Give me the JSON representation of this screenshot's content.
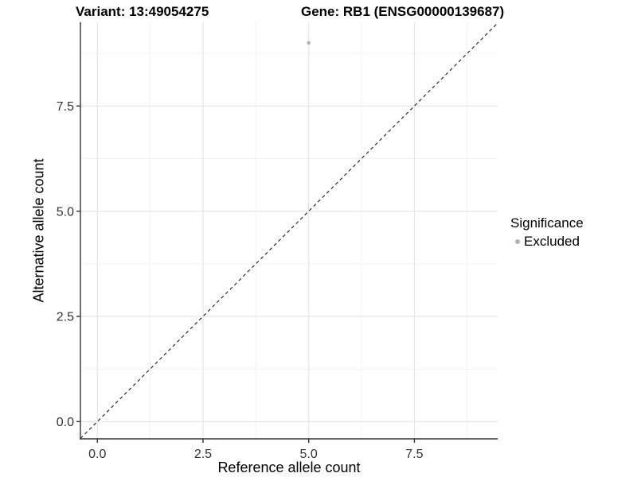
{
  "header": {
    "title_left": "Variant: 13:49054275",
    "title_right": "Gene: RB1 (ENSG00000139687)"
  },
  "chart_data": {
    "type": "scatter",
    "xlabel": "Reference allele count",
    "ylabel": "Alternative allele count",
    "xlim": [
      -0.4,
      9.47
    ],
    "ylim": [
      -0.41,
      9.49
    ],
    "x_ticks": {
      "values": [
        0.0,
        2.5,
        5.0,
        7.5
      ],
      "labels": [
        "0.0",
        "2.5",
        "5.0",
        "7.5"
      ]
    },
    "y_ticks": {
      "values": [
        0.0,
        2.5,
        5.0,
        7.5
      ],
      "labels": [
        "0.0",
        "2.5",
        "5.0",
        "7.5"
      ]
    },
    "x_minor_ticks": [
      1.25,
      3.75,
      6.25,
      8.75
    ],
    "y_minor_ticks": [
      1.25,
      3.75,
      6.25,
      8.75
    ],
    "grid": true,
    "points": [
      {
        "x": 5.0,
        "y": 9.0,
        "series": "Excluded"
      }
    ],
    "reference_line": {
      "type": "identity",
      "slope": 1,
      "intercept": 0,
      "style": "dashed"
    },
    "legend": {
      "title": "Significance",
      "position": "right",
      "entries": [
        {
          "label": "Excluded",
          "color": "#b2b2b2",
          "marker": "circle"
        }
      ]
    },
    "colors": {
      "point": "#b2b2b2",
      "reference_line": "#1a1a1a",
      "grid_major": "#e3e3e3",
      "grid_minor": "#f1f1f1",
      "axis_line": "#333333",
      "tick_mark": "#333333",
      "tick_label": "#333333",
      "panel_background": "#ffffff"
    }
  }
}
